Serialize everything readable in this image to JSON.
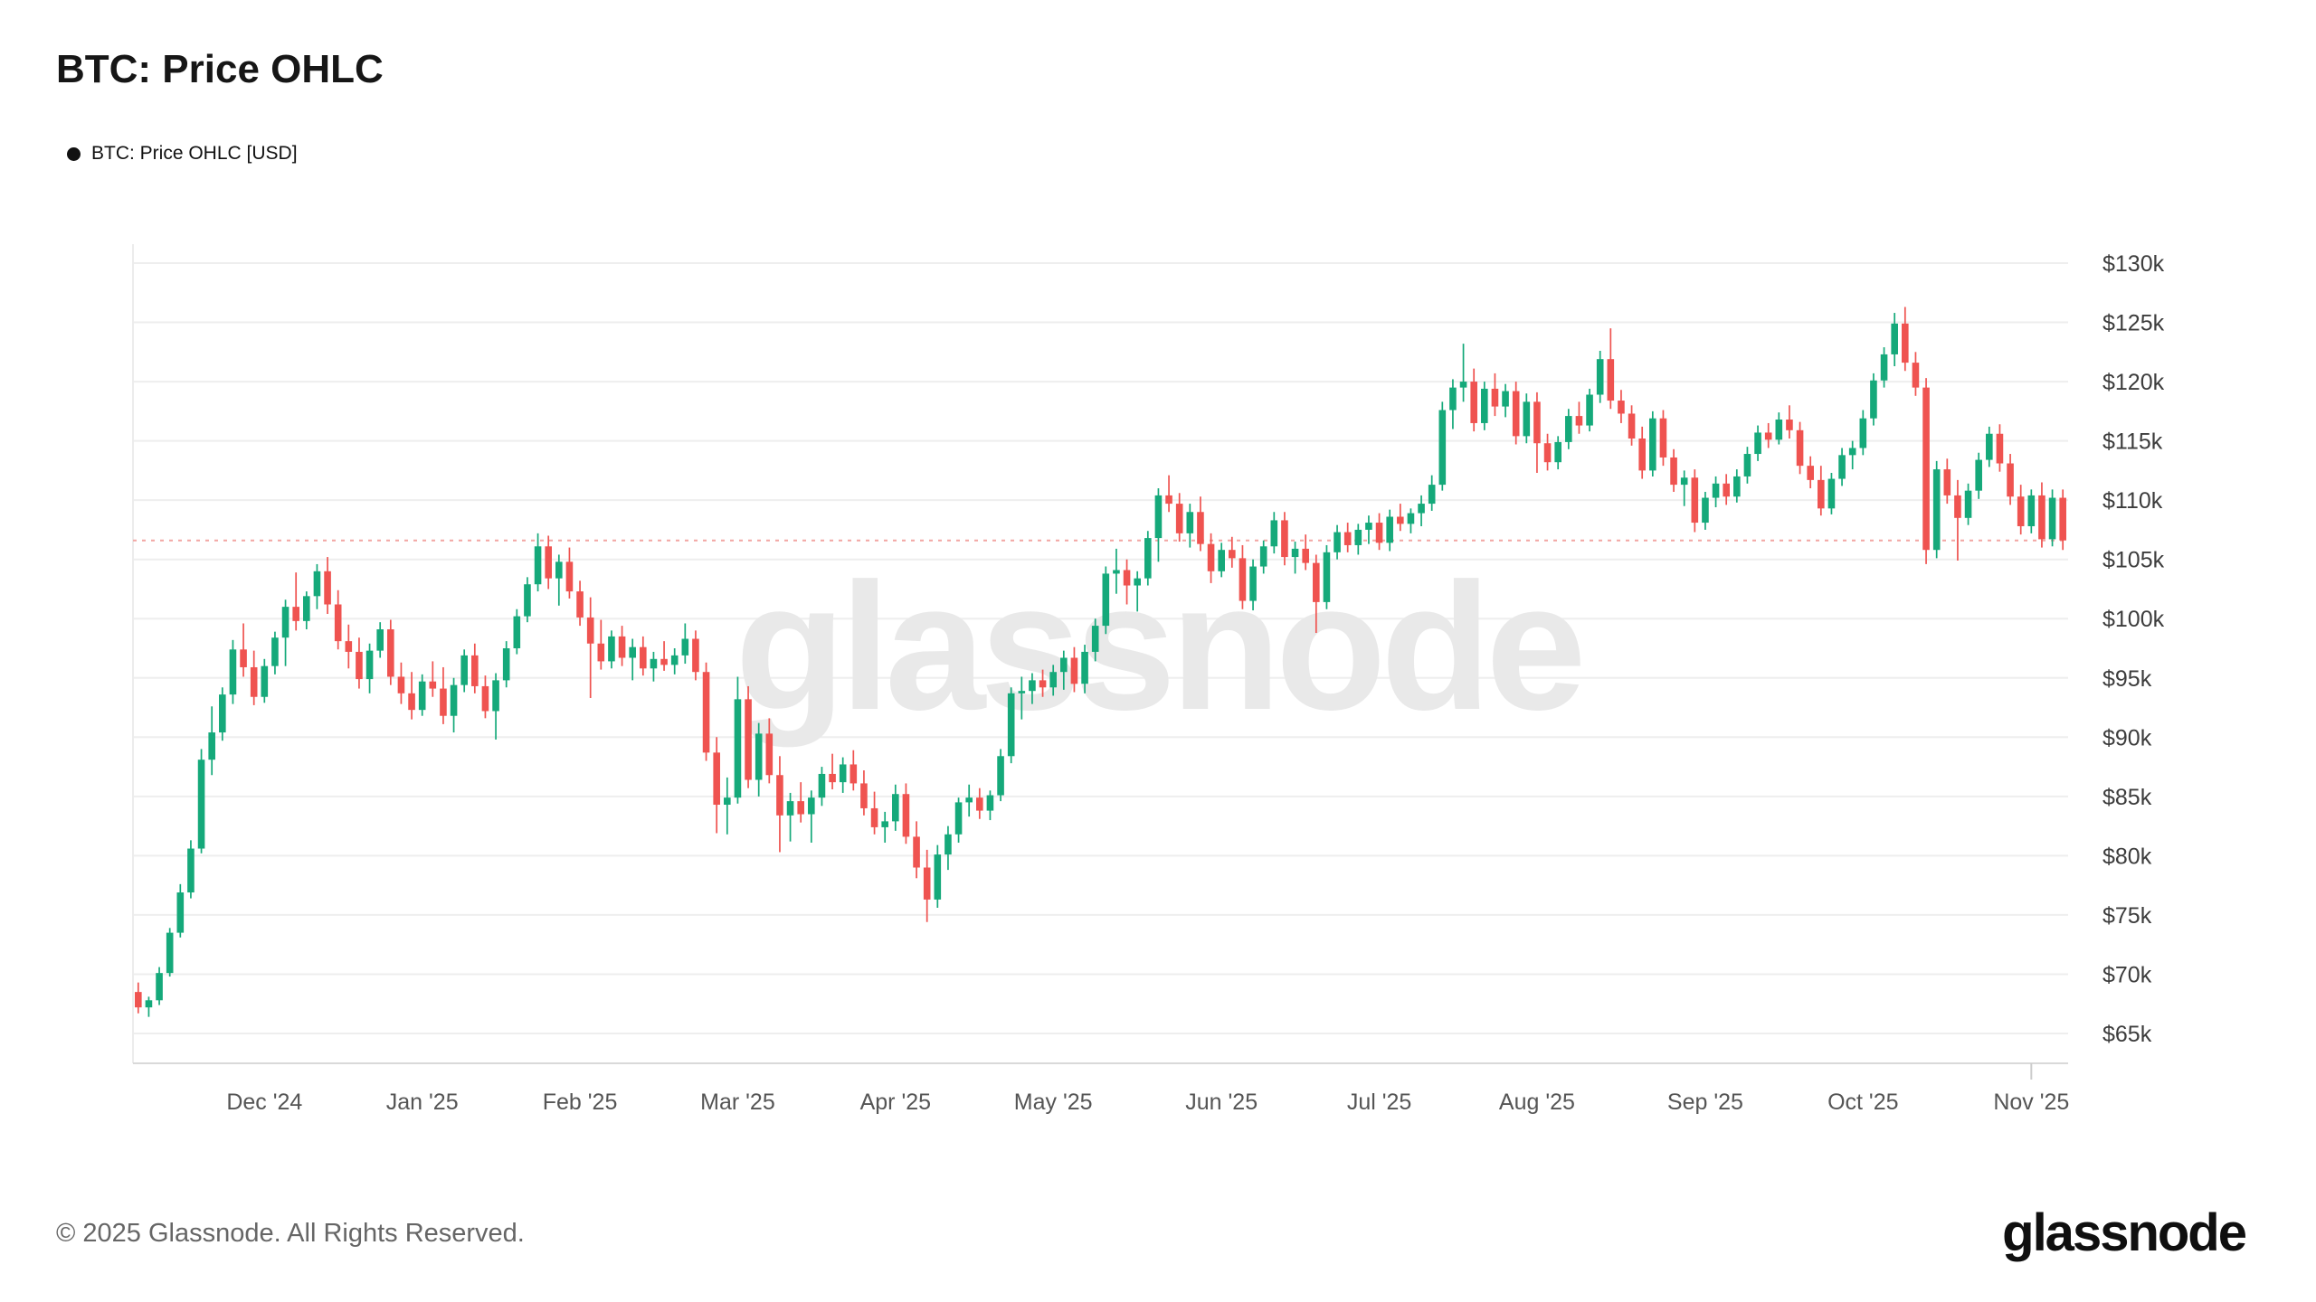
{
  "page": {
    "title": "BTC: Price OHLC",
    "legend_label": "BTC: Price OHLC [USD]",
    "watermark": "glassnode",
    "footer_copyright": "© 2025 Glassnode. All Rights Reserved.",
    "brand_logo": "glassnode"
  },
  "chart_data": {
    "type": "candlestick",
    "title": "BTC: Price OHLC",
    "series_name": "BTC: Price OHLC [USD]",
    "unit": "USD, thousands",
    "grid": true,
    "legend_position": "top-left",
    "y_axis": {
      "side": "right",
      "min": 65,
      "max": 130,
      "ticks": [
        {
          "label": "$130k",
          "value": 130
        },
        {
          "label": "$125k",
          "value": 125
        },
        {
          "label": "$120k",
          "value": 120
        },
        {
          "label": "$115k",
          "value": 115
        },
        {
          "label": "$110k",
          "value": 110
        },
        {
          "label": "$105k",
          "value": 105
        },
        {
          "label": "$100k",
          "value": 100
        },
        {
          "label": "$95k",
          "value": 95
        },
        {
          "label": "$90k",
          "value": 90
        },
        {
          "label": "$85k",
          "value": 85
        },
        {
          "label": "$80k",
          "value": 80
        },
        {
          "label": "$75k",
          "value": 75
        },
        {
          "label": "$70k",
          "value": 70
        },
        {
          "label": "$65k",
          "value": 65
        }
      ]
    },
    "x_axis": {
      "ticks": [
        {
          "label": "Dec '24",
          "index": 12
        },
        {
          "label": "Jan '25",
          "index": 27
        },
        {
          "label": "Feb '25",
          "index": 42
        },
        {
          "label": "Mar '25",
          "index": 57
        },
        {
          "label": "Apr '25",
          "index": 72
        },
        {
          "label": "May '25",
          "index": 87
        },
        {
          "label": "Jun '25",
          "index": 103
        },
        {
          "label": "Jul '25",
          "index": 118
        },
        {
          "label": "Aug '25",
          "index": 133
        },
        {
          "label": "Sep '25",
          "index": 149
        },
        {
          "label": "Oct '25",
          "index": 164
        },
        {
          "label": "Nov '25",
          "index": 180
        }
      ]
    },
    "last_price_line": 106.6,
    "colors": {
      "up": "#15a97a",
      "down": "#ef5350",
      "last_price_line": "#f2a6a2",
      "grid": "#eeeeee",
      "axis": "#d9d9d9",
      "watermark": "#e9e9e9"
    },
    "candles_ohlc": [
      [
        68.5,
        69.3,
        66.7,
        67.2
      ],
      [
        67.2,
        68.1,
        66.4,
        67.8
      ],
      [
        67.8,
        70.6,
        67.4,
        70.1
      ],
      [
        70.1,
        73.9,
        69.8,
        73.5
      ],
      [
        73.5,
        77.6,
        73.1,
        76.9
      ],
      [
        76.9,
        81.3,
        76.4,
        80.6
      ],
      [
        80.6,
        89.0,
        80.2,
        88.1
      ],
      [
        88.1,
        92.6,
        86.8,
        90.4
      ],
      [
        90.4,
        94.2,
        89.7,
        93.6
      ],
      [
        93.6,
        98.2,
        92.8,
        97.4
      ],
      [
        97.4,
        99.6,
        95.1,
        95.9
      ],
      [
        95.9,
        97.3,
        92.7,
        93.4
      ],
      [
        93.4,
        96.6,
        92.9,
        96.0
      ],
      [
        96.0,
        98.9,
        95.3,
        98.4
      ],
      [
        98.4,
        101.6,
        96.0,
        101.0
      ],
      [
        101.0,
        103.9,
        99.0,
        99.8
      ],
      [
        99.8,
        102.3,
        99.1,
        101.9
      ],
      [
        101.9,
        104.6,
        100.8,
        104.0
      ],
      [
        104.0,
        105.2,
        100.4,
        101.2
      ],
      [
        101.2,
        102.4,
        97.4,
        98.1
      ],
      [
        98.1,
        99.5,
        95.8,
        97.2
      ],
      [
        97.2,
        98.4,
        94.1,
        94.9
      ],
      [
        94.9,
        97.9,
        93.7,
        97.3
      ],
      [
        97.3,
        99.7,
        96.7,
        99.1
      ],
      [
        99.1,
        99.9,
        94.4,
        95.1
      ],
      [
        95.1,
        96.3,
        92.8,
        93.7
      ],
      [
        93.7,
        95.5,
        91.5,
        92.3
      ],
      [
        92.3,
        95.3,
        91.8,
        94.7
      ],
      [
        94.7,
        96.4,
        93.4,
        94.1
      ],
      [
        94.1,
        95.9,
        91.1,
        91.8
      ],
      [
        91.8,
        95.0,
        90.4,
        94.4
      ],
      [
        94.4,
        97.4,
        93.8,
        96.9
      ],
      [
        96.9,
        97.9,
        93.7,
        94.3
      ],
      [
        94.3,
        95.2,
        91.6,
        92.2
      ],
      [
        92.2,
        95.4,
        89.8,
        94.8
      ],
      [
        94.8,
        98.1,
        94.2,
        97.5
      ],
      [
        97.5,
        100.8,
        97.0,
        100.2
      ],
      [
        100.2,
        103.5,
        99.7,
        102.9
      ],
      [
        102.9,
        107.2,
        102.3,
        106.1
      ],
      [
        106.1,
        107.0,
        102.5,
        103.4
      ],
      [
        103.4,
        105.4,
        101.1,
        104.8
      ],
      [
        104.8,
        106.0,
        101.7,
        102.3
      ],
      [
        102.3,
        103.2,
        99.4,
        100.1
      ],
      [
        100.1,
        101.8,
        93.3,
        97.9
      ],
      [
        97.9,
        99.9,
        95.7,
        96.4
      ],
      [
        96.4,
        99.0,
        95.8,
        98.5
      ],
      [
        98.5,
        99.4,
        96.0,
        96.7
      ],
      [
        96.7,
        98.3,
        94.8,
        97.6
      ],
      [
        97.6,
        98.5,
        95.2,
        95.8
      ],
      [
        95.8,
        97.2,
        94.7,
        96.6
      ],
      [
        96.6,
        98.1,
        95.6,
        96.1
      ],
      [
        96.1,
        97.5,
        95.3,
        96.9
      ],
      [
        96.9,
        99.6,
        96.2,
        98.3
      ],
      [
        98.3,
        99.0,
        94.8,
        95.5
      ],
      [
        95.5,
        96.3,
        88.0,
        88.7
      ],
      [
        88.7,
        90.0,
        81.9,
        84.3
      ],
      [
        84.3,
        86.6,
        81.8,
        84.9
      ],
      [
        84.9,
        95.1,
        84.4,
        93.2
      ],
      [
        93.2,
        94.3,
        85.7,
        86.4
      ],
      [
        86.4,
        91.2,
        85.0,
        90.3
      ],
      [
        90.3,
        91.6,
        86.1,
        86.8
      ],
      [
        86.8,
        88.4,
        80.3,
        83.4
      ],
      [
        83.4,
        85.3,
        81.2,
        84.6
      ],
      [
        84.6,
        86.2,
        82.8,
        83.5
      ],
      [
        83.5,
        85.5,
        81.1,
        84.9
      ],
      [
        84.9,
        87.5,
        84.2,
        86.9
      ],
      [
        86.9,
        88.6,
        85.6,
        86.2
      ],
      [
        86.2,
        88.3,
        85.3,
        87.7
      ],
      [
        87.7,
        88.9,
        85.5,
        86.1
      ],
      [
        86.1,
        87.2,
        83.4,
        84.0
      ],
      [
        84.0,
        85.4,
        81.8,
        82.4
      ],
      [
        82.4,
        83.7,
        81.1,
        82.9
      ],
      [
        82.9,
        86.0,
        82.1,
        85.2
      ],
      [
        85.2,
        86.1,
        81.0,
        81.6
      ],
      [
        81.6,
        82.9,
        78.1,
        79.0
      ],
      [
        79.0,
        80.5,
        74.4,
        76.3
      ],
      [
        76.3,
        80.9,
        75.6,
        80.1
      ],
      [
        80.1,
        82.5,
        78.8,
        81.8
      ],
      [
        81.8,
        84.9,
        81.1,
        84.5
      ],
      [
        84.5,
        86.0,
        83.3,
        84.9
      ],
      [
        84.9,
        85.7,
        83.1,
        83.8
      ],
      [
        83.8,
        85.5,
        83.0,
        85.1
      ],
      [
        85.1,
        89.0,
        84.6,
        88.4
      ],
      [
        88.4,
        94.2,
        87.8,
        93.7
      ],
      [
        93.7,
        95.1,
        91.5,
        93.9
      ],
      [
        93.9,
        95.4,
        92.8,
        94.8
      ],
      [
        94.8,
        95.7,
        93.4,
        94.2
      ],
      [
        94.2,
        96.1,
        93.5,
        95.5
      ],
      [
        95.5,
        97.3,
        94.0,
        96.7
      ],
      [
        96.7,
        97.6,
        93.8,
        94.5
      ],
      [
        94.5,
        97.8,
        93.7,
        97.2
      ],
      [
        97.2,
        100.0,
        96.4,
        99.4
      ],
      [
        99.4,
        104.4,
        98.7,
        103.8
      ],
      [
        103.8,
        105.9,
        102.1,
        104.1
      ],
      [
        104.1,
        105.0,
        101.2,
        102.8
      ],
      [
        102.8,
        104.0,
        100.6,
        103.4
      ],
      [
        103.4,
        107.4,
        102.8,
        106.8
      ],
      [
        106.8,
        111.0,
        104.8,
        110.4
      ],
      [
        110.4,
        112.1,
        109.0,
        109.7
      ],
      [
        109.7,
        110.6,
        106.5,
        107.2
      ],
      [
        107.2,
        109.7,
        106.0,
        109.0
      ],
      [
        109.0,
        110.3,
        105.7,
        106.3
      ],
      [
        106.3,
        107.2,
        103.0,
        104.0
      ],
      [
        104.0,
        106.4,
        103.5,
        105.8
      ],
      [
        105.8,
        106.9,
        104.3,
        105.1
      ],
      [
        105.1,
        106.2,
        100.8,
        101.5
      ],
      [
        101.5,
        105.0,
        100.7,
        104.4
      ],
      [
        104.4,
        106.6,
        103.8,
        106.1
      ],
      [
        106.1,
        109.0,
        105.5,
        108.3
      ],
      [
        108.3,
        109.0,
        104.5,
        105.2
      ],
      [
        105.2,
        106.5,
        103.8,
        105.9
      ],
      [
        105.9,
        107.1,
        104.1,
        104.7
      ],
      [
        104.7,
        105.4,
        98.8,
        101.4
      ],
      [
        101.4,
        106.2,
        100.8,
        105.6
      ],
      [
        105.6,
        107.9,
        105.0,
        107.3
      ],
      [
        107.3,
        108.1,
        105.6,
        106.2
      ],
      [
        106.2,
        108.0,
        105.4,
        107.5
      ],
      [
        107.5,
        108.7,
        106.3,
        108.1
      ],
      [
        108.1,
        108.9,
        105.8,
        106.4
      ],
      [
        106.4,
        109.2,
        105.7,
        108.6
      ],
      [
        108.6,
        109.7,
        107.4,
        108.0
      ],
      [
        108.0,
        109.3,
        107.2,
        108.9
      ],
      [
        108.9,
        110.4,
        107.8,
        109.7
      ],
      [
        109.7,
        112.1,
        109.1,
        111.3
      ],
      [
        111.3,
        118.3,
        110.8,
        117.6
      ],
      [
        117.6,
        120.2,
        116.0,
        119.5
      ],
      [
        119.5,
        123.2,
        118.3,
        120.0
      ],
      [
        120.0,
        121.1,
        115.8,
        116.5
      ],
      [
        116.5,
        120.0,
        115.9,
        119.4
      ],
      [
        119.4,
        120.7,
        117.1,
        117.9
      ],
      [
        117.9,
        119.8,
        117.0,
        119.2
      ],
      [
        119.2,
        120.0,
        114.7,
        115.4
      ],
      [
        115.4,
        119.0,
        114.8,
        118.3
      ],
      [
        118.3,
        119.1,
        112.3,
        114.8
      ],
      [
        114.8,
        115.6,
        112.5,
        113.2
      ],
      [
        113.2,
        115.4,
        112.6,
        114.9
      ],
      [
        114.9,
        117.7,
        114.3,
        117.1
      ],
      [
        117.1,
        118.3,
        115.6,
        116.3
      ],
      [
        116.3,
        119.4,
        115.8,
        118.9
      ],
      [
        118.9,
        122.6,
        118.2,
        121.9
      ],
      [
        121.9,
        124.5,
        117.7,
        118.4
      ],
      [
        118.4,
        119.3,
        116.5,
        117.3
      ],
      [
        117.3,
        118.0,
        114.6,
        115.2
      ],
      [
        115.2,
        116.2,
        111.8,
        112.5
      ],
      [
        112.5,
        117.5,
        112.0,
        116.9
      ],
      [
        116.9,
        117.6,
        112.9,
        113.6
      ],
      [
        113.6,
        114.3,
        110.7,
        111.3
      ],
      [
        111.3,
        112.5,
        109.5,
        111.9
      ],
      [
        111.9,
        112.6,
        107.3,
        108.1
      ],
      [
        108.1,
        110.7,
        107.5,
        110.2
      ],
      [
        110.2,
        112.0,
        109.4,
        111.4
      ],
      [
        111.4,
        112.2,
        109.6,
        110.3
      ],
      [
        110.3,
        112.6,
        109.8,
        112.0
      ],
      [
        112.0,
        114.5,
        111.4,
        113.9
      ],
      [
        113.9,
        116.3,
        113.3,
        115.7
      ],
      [
        115.7,
        116.5,
        114.4,
        115.1
      ],
      [
        115.1,
        117.4,
        114.7,
        116.8
      ],
      [
        116.8,
        118.0,
        115.2,
        115.9
      ],
      [
        115.9,
        116.6,
        112.2,
        112.9
      ],
      [
        112.9,
        113.7,
        111.0,
        111.7
      ],
      [
        111.7,
        112.9,
        108.7,
        109.3
      ],
      [
        109.3,
        112.3,
        108.8,
        111.8
      ],
      [
        111.8,
        114.4,
        111.2,
        113.8
      ],
      [
        113.8,
        115.0,
        112.6,
        114.4
      ],
      [
        114.4,
        117.6,
        113.8,
        116.9
      ],
      [
        116.9,
        120.7,
        116.3,
        120.1
      ],
      [
        120.1,
        122.9,
        119.5,
        122.3
      ],
      [
        122.3,
        125.8,
        121.3,
        124.9
      ],
      [
        124.9,
        126.3,
        120.9,
        121.6
      ],
      [
        121.6,
        122.5,
        118.8,
        119.5
      ],
      [
        119.5,
        120.3,
        104.6,
        105.8
      ],
      [
        105.8,
        113.3,
        105.1,
        112.6
      ],
      [
        112.6,
        113.5,
        109.7,
        110.4
      ],
      [
        110.4,
        111.7,
        104.9,
        108.5
      ],
      [
        108.5,
        111.4,
        107.9,
        110.8
      ],
      [
        110.8,
        114.0,
        110.1,
        113.4
      ],
      [
        113.4,
        116.2,
        112.8,
        115.6
      ],
      [
        115.6,
        116.4,
        112.4,
        113.1
      ],
      [
        113.1,
        113.9,
        109.6,
        110.3
      ],
      [
        110.3,
        111.3,
        107.1,
        107.8
      ],
      [
        107.8,
        110.9,
        107.2,
        110.4
      ],
      [
        110.4,
        111.5,
        106.0,
        106.7
      ],
      [
        106.7,
        110.9,
        106.1,
        110.2
      ],
      [
        110.2,
        110.9,
        105.8,
        106.6
      ]
    ]
  }
}
